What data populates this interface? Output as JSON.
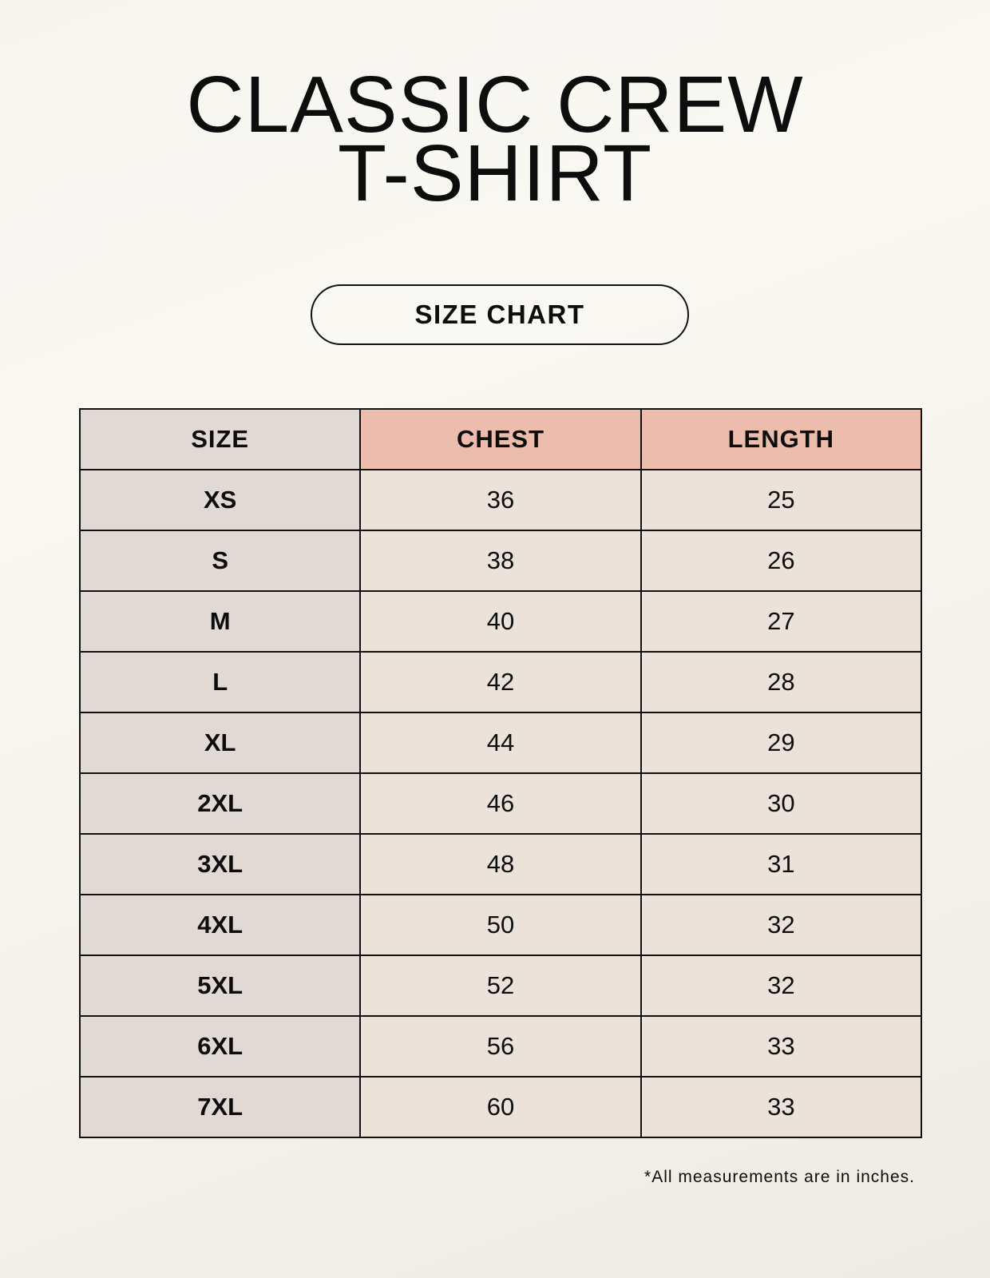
{
  "title_lines": [
    "CLASSIC CREW",
    "T-SHIRT"
  ],
  "badge": "SIZE CHART",
  "table": {
    "headers": [
      "SIZE",
      "CHEST",
      "LENGTH"
    ],
    "rows": [
      [
        "XS",
        "36",
        "25"
      ],
      [
        "S",
        "38",
        "26"
      ],
      [
        "M",
        "40",
        "27"
      ],
      [
        "L",
        "42",
        "28"
      ],
      [
        "XL",
        "44",
        "29"
      ],
      [
        "2XL",
        "46",
        "30"
      ],
      [
        "3XL",
        "48",
        "31"
      ],
      [
        "4XL",
        "50",
        "32"
      ],
      [
        "5XL",
        "52",
        "32"
      ],
      [
        "6XL",
        "56",
        "33"
      ],
      [
        "7XL",
        "60",
        "33"
      ]
    ]
  },
  "note": "*All measurements are in inches.",
  "colors": {
    "size_column": "#e0d9d4",
    "header_accent": "#ecbcad",
    "value_cells": "#ebe3d9"
  }
}
